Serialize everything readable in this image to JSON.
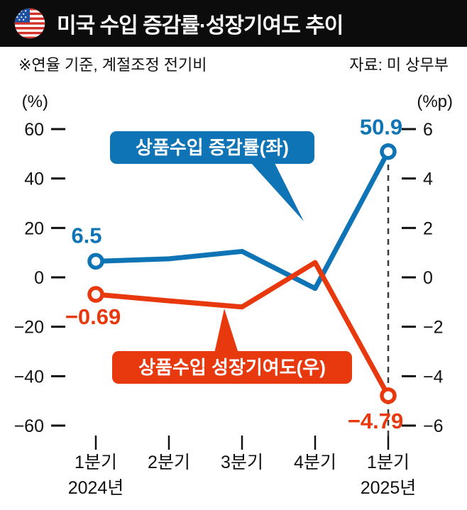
{
  "header": {
    "title": "미국 수입 증감률·성장기여도 추이",
    "flag_icon": "us-flag-icon"
  },
  "notes": {
    "left": "※연율 기준, 계절조정 전기비",
    "right": "자료: 미 상무부"
  },
  "colors": {
    "blue": "#0f74b5",
    "red": "#e8380d",
    "header_bg": "#0c0c0c",
    "dashed_line": "#3a3a3a",
    "text": "#111111"
  },
  "chart_data": {
    "type": "line",
    "title": "미국 수입 증감률·성장기여도 추이",
    "categories": [
      "1분기",
      "2분기",
      "3분기",
      "4분기",
      "1분기"
    ],
    "year_labels": [
      {
        "category_index": 0,
        "label": "2024년"
      },
      {
        "category_index": 4,
        "label": "2025년"
      }
    ],
    "left_axis": {
      "unit": "(%)",
      "range": [
        -70,
        70
      ],
      "ticks": [
        {
          "v": 60,
          "label": "60"
        },
        {
          "v": 40,
          "label": "40"
        },
        {
          "v": 20,
          "label": "20"
        },
        {
          "v": 0,
          "label": "0"
        },
        {
          "v": -20,
          "label": "−20"
        },
        {
          "v": -40,
          "label": "−40"
        },
        {
          "v": -60,
          "label": "−60"
        }
      ]
    },
    "right_axis": {
      "unit": "(%p)",
      "range": [
        -7,
        7
      ],
      "ticks": [
        {
          "v": 6,
          "label": "6"
        },
        {
          "v": 4,
          "label": "4"
        },
        {
          "v": 2,
          "label": "2"
        },
        {
          "v": 0,
          "label": "0"
        },
        {
          "v": -2,
          "label": "−2"
        },
        {
          "v": -4,
          "label": "−4"
        },
        {
          "v": -6,
          "label": "−6"
        }
      ]
    },
    "series": [
      {
        "id": "import-growth",
        "name": "상품수입 증감률(좌)",
        "axis": "left",
        "color": "#0f74b5",
        "values": [
          6.5,
          7.5,
          10.5,
          -4.5,
          50.9
        ],
        "first_label": "6.5",
        "last_label": "50.9"
      },
      {
        "id": "growth-contribution",
        "name": "상품수입 성장기여도(우)",
        "axis": "right",
        "color": "#e8380d",
        "values": [
          -0.69,
          -0.95,
          -1.2,
          0.6,
          -4.79
        ],
        "first_label": "−0.69",
        "last_label": "−4.79"
      }
    ],
    "dashed_line_category_index": 4,
    "legend_position": "callout-boxes",
    "grid": false
  }
}
